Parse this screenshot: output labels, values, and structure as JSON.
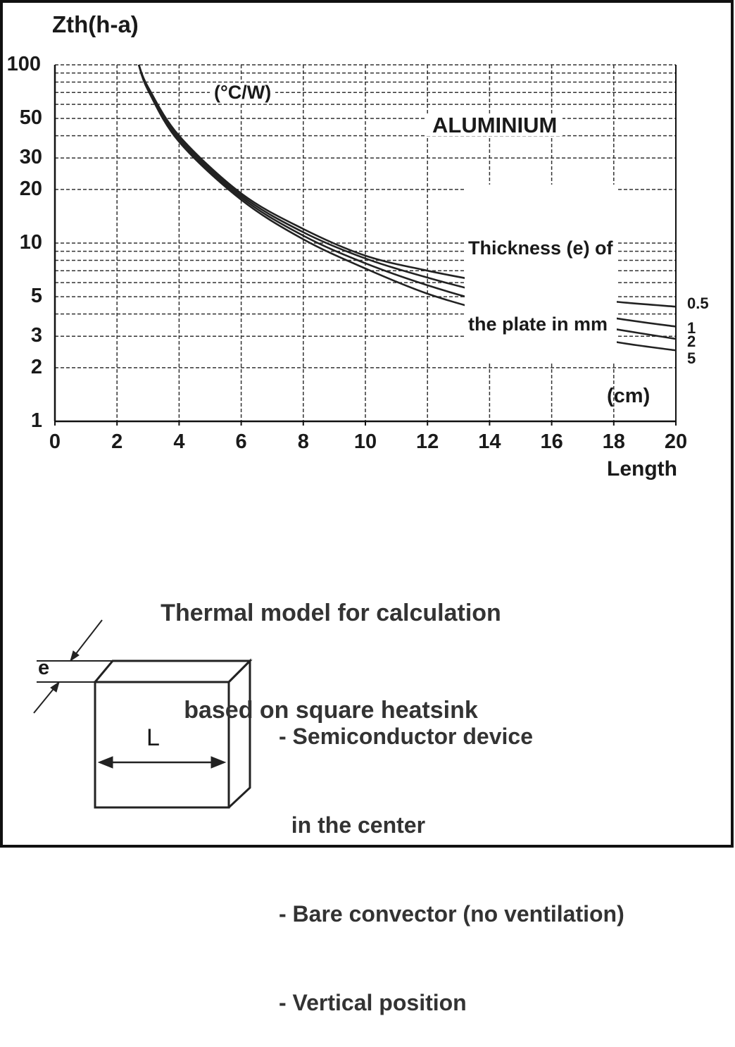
{
  "chart_data": {
    "type": "line",
    "title": "",
    "ylabel": "Zth(h-a)",
    "yunit": "(°C/W)",
    "xlabel": "Length",
    "xunit": "(cm)",
    "material": "ALUMINIUM",
    "legend_title": [
      "Thickness (e) of",
      "the plate in mm"
    ],
    "yscale": "log",
    "ylim": [
      1,
      100
    ],
    "xlim": [
      0,
      20
    ],
    "grid": true,
    "yticks": [
      "1",
      "2",
      "3",
      "5",
      "10",
      "20",
      "30",
      "50",
      "100"
    ],
    "xticks": [
      "0",
      "2",
      "4",
      "6",
      "8",
      "10",
      "12",
      "14",
      "16",
      "18",
      "20"
    ],
    "x": [
      2.7,
      3,
      4,
      6,
      8,
      10,
      12,
      14,
      16,
      18,
      20
    ],
    "series": [
      {
        "name": "0.5",
        "values": [
          100,
          75,
          40,
          19,
          12,
          8.5,
          7,
          6,
          5.2,
          4.7,
          4.4
        ]
      },
      {
        "name": "1",
        "values": [
          100,
          74,
          39,
          18.5,
          11.5,
          8.2,
          6.4,
          5.2,
          4.4,
          3.8,
          3.4
        ]
      },
      {
        "name": "2",
        "values": [
          100,
          73,
          38,
          18,
          11,
          7.7,
          5.8,
          4.6,
          3.8,
          3.3,
          2.9
        ]
      },
      {
        "name": "5",
        "values": [
          100,
          72,
          37,
          17.5,
          10.5,
          7.2,
          5.2,
          4.1,
          3.3,
          2.8,
          2.5
        ]
      }
    ]
  },
  "caption": [
    "Thermal model for calculation",
    "based on square heatsink"
  ],
  "diagram": {
    "thickness_label": "e",
    "length_label": "L"
  },
  "notes": [
    "- Semiconductor device",
    "  in the center",
    "- Bare convector (no ventilation)",
    "- Vertical position"
  ]
}
